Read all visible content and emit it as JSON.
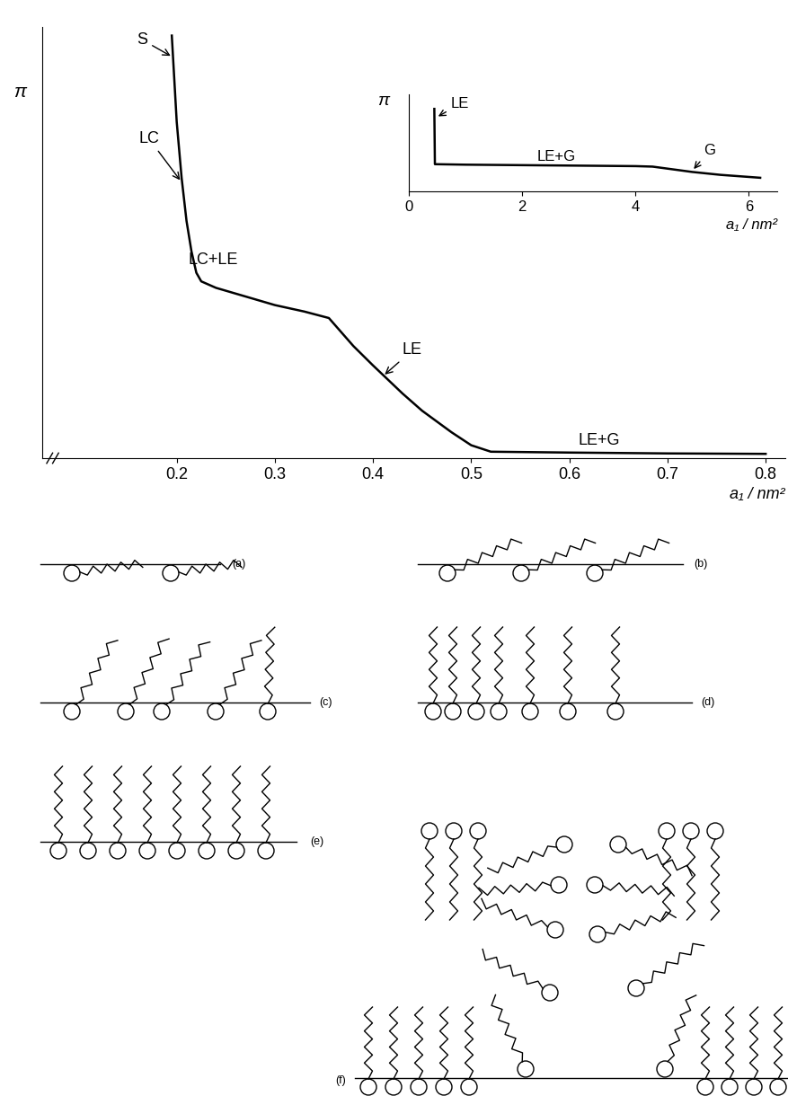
{
  "chart_data": [
    {
      "type": "line",
      "x": [
        0.195,
        0.197,
        0.2,
        0.205,
        0.21,
        0.215,
        0.22,
        0.225,
        0.24,
        0.27,
        0.3,
        0.33,
        0.355,
        0.38,
        0.4,
        0.43,
        0.45,
        0.48,
        0.5,
        0.52,
        0.6,
        0.7,
        0.8
      ],
      "values": [
        98,
        90,
        78,
        65,
        55,
        48,
        43,
        41,
        39.5,
        37.5,
        35.5,
        34,
        32.5,
        26,
        21.5,
        15,
        11,
        6,
        3,
        1.5,
        1.3,
        1.1,
        1.0
      ],
      "color": "#000000",
      "xlabel": "a₁ / nm²",
      "ylabel": "π",
      "xlim": [
        0.063,
        0.82
      ],
      "xticks": [
        0.2,
        0.3,
        0.4,
        0.5,
        0.6,
        0.7,
        0.8
      ],
      "ylim": [
        0,
        100
      ],
      "yticks": [],
      "tick_labels": "x",
      "annotations": [
        {
          "text": "S",
          "x": 0.165,
          "y": 97,
          "arrow_to": [
            0.196,
            93
          ]
        },
        {
          "text": "LC",
          "x": 0.172,
          "y": 74,
          "arrow_to": [
            0.205,
            64
          ]
        },
        {
          "text": "LC+LE",
          "x": 0.237,
          "y": 46
        },
        {
          "text": "LE",
          "x": 0.44,
          "y": 25,
          "arrow_to": [
            0.41,
            19
          ]
        },
        {
          "text": "LE+G",
          "x": 0.63,
          "y": 4
        }
      ]
    },
    {
      "type": "line",
      "x": [
        0.45,
        0.46,
        1,
        2,
        3,
        4,
        4.3,
        5,
        5.5,
        6.2
      ],
      "values": [
        8.5,
        2.8,
        2.75,
        2.7,
        2.65,
        2.6,
        2.55,
        2.0,
        1.7,
        1.4
      ],
      "color": "#000000",
      "xlabel": "a₁ / nm²",
      "ylabel": "π",
      "xlim": [
        0,
        6.5
      ],
      "xticks": [
        0,
        2,
        4,
        6
      ],
      "ylim": [
        0,
        10
      ],
      "yticks": [],
      "tick_labels": "x",
      "annotations": [
        {
          "text": "LE",
          "x": 0.9,
          "y": 9.0,
          "arrow_to": [
            0.48,
            7.6
          ]
        },
        {
          "text": "LE+G",
          "x": 2.6,
          "y": 3.6
        },
        {
          "text": "G",
          "x": 5.3,
          "y": 4.2,
          "arrow_to": [
            5.0,
            2.1
          ]
        }
      ]
    }
  ],
  "diagram": {
    "panels": [
      "(a)",
      "(b)",
      "(c)",
      "(d)",
      "(e)",
      "(f)"
    ]
  }
}
